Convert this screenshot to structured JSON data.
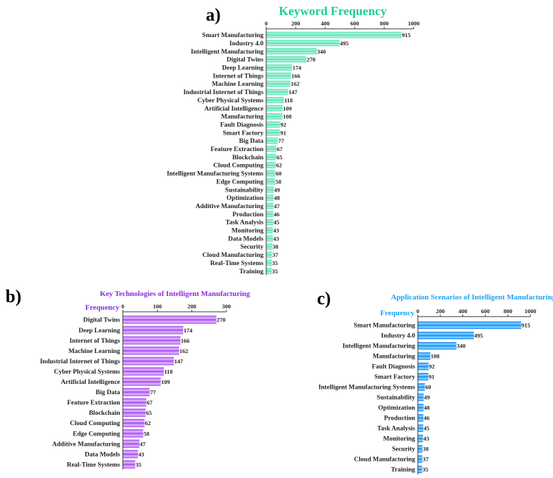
{
  "chart_data": [
    {
      "id": "a",
      "panel_label": "a)",
      "type": "bar",
      "orientation": "horizontal",
      "title": "Keyword Frequency",
      "xlabel": "",
      "ylabel": "",
      "title_color": "#1fce8e",
      "bar_color": "#4de0ac",
      "bar_highlight": "#b8f5de",
      "xlim": [
        0,
        1000
      ],
      "ticks": [
        0,
        200,
        400,
        600,
        800,
        1000
      ],
      "categories": [
        "Smart Manufacturing",
        "Industry 4.0",
        "Intelligent Manufacturing",
        "Digital Twins",
        "Deep Learning",
        "Internet of Things",
        "Machine Learning",
        "Industrial Internet of Things",
        "Cyber Physical Systems",
        "Artificial Intelligence",
        "Manufacturing",
        "Fault Diagnosis",
        "Smart Factory",
        "Big Data",
        "Feature Extraction",
        "Blockchain",
        "Cloud Computing",
        "Intelligent Manufacturing Systems",
        "Edge Computing",
        "Sustainability",
        "Optimization",
        "Additive Manufacturing",
        "Production",
        "Task Analysis",
        "Monitoring",
        "Data Models",
        "Security",
        "Cloud Manufacturing",
        "Real-Time Systems",
        "Training"
      ],
      "values": [
        915,
        495,
        340,
        270,
        174,
        166,
        162,
        147,
        118,
        109,
        108,
        92,
        91,
        77,
        67,
        65,
        62,
        60,
        58,
        49,
        48,
        47,
        46,
        45,
        43,
        43,
        38,
        37,
        35,
        35
      ],
      "grid": false,
      "axis_position": "top"
    },
    {
      "id": "b",
      "panel_label": "b)",
      "type": "bar",
      "orientation": "horizontal",
      "title": "Key Technologies of Intelligent Manufacturing",
      "xlabel": "Frequency",
      "ylabel": "",
      "title_color": "#8a2be2",
      "bar_color": "#a24ff0",
      "bar_highlight": "#e7b8ff",
      "xlim": [
        0,
        300
      ],
      "ticks": [
        0,
        100,
        200,
        300
      ],
      "categories": [
        "Digital Twins",
        "Deep Learning",
        "Internet of Things",
        "Machine Learning",
        "Industrial Internet of Things",
        "Cyber Physical Systems",
        "Artificial Intelligence",
        "Big Data",
        "Feature Extraction",
        "Blockchain",
        "Cloud Computing",
        "Edge Computing",
        "Additive Manufacturing",
        "Data Models",
        "Real-Time Systems"
      ],
      "values": [
        270,
        174,
        166,
        162,
        147,
        118,
        109,
        77,
        67,
        65,
        62,
        58,
        47,
        43,
        35
      ],
      "grid": false,
      "axis_position": "top"
    },
    {
      "id": "c",
      "panel_label": "c)",
      "type": "bar",
      "orientation": "horizontal",
      "title": "Application Scenarios of Intelligent Manufacturing",
      "xlabel": "Frequency",
      "ylabel": "",
      "title_color": "#1aa3f0",
      "bar_color": "#2f7ef5",
      "bar_highlight": "#6fe3ff",
      "xlim": [
        0,
        1000
      ],
      "ticks": [
        0,
        200,
        400,
        600,
        800,
        1000
      ],
      "categories": [
        "Smart Manufacturing",
        "Industry 4.0",
        "Intelligent Manufacturing",
        "Manufacturing",
        "Fault Diagnosis",
        "Smart Factory",
        "Intelligent Manufacturing Systems",
        "Sustainability",
        "Optimization",
        "Production",
        "Task Analysis",
        "Monitoring",
        "Security",
        "Cloud Manufacturing",
        "Training"
      ],
      "values": [
        915,
        495,
        340,
        108,
        92,
        91,
        60,
        49,
        48,
        46,
        45,
        43,
        38,
        37,
        35
      ],
      "grid": false,
      "axis_position": "top"
    }
  ]
}
